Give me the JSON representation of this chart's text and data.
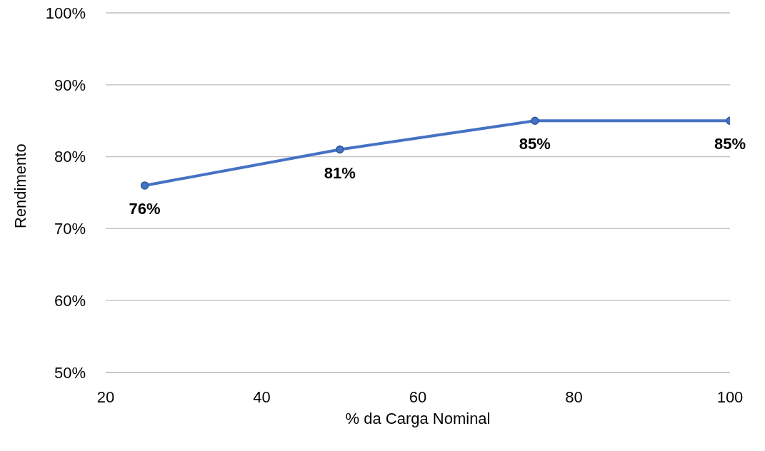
{
  "chart_data": {
    "type": "line",
    "xlabel": "% da Carga Nominal",
    "ylabel": "Rendimento",
    "x": [
      25,
      50,
      75,
      100
    ],
    "series": [
      {
        "color": "#4472c4",
        "values": [
          76,
          81,
          85,
          85
        ],
        "value_labels": [
          "76%",
          "81%",
          "85%",
          "85%"
        ]
      }
    ],
    "xlim": [
      20,
      100
    ],
    "xticks": [
      20,
      40,
      60,
      80,
      100
    ],
    "ylim": [
      50,
      100
    ],
    "yticks": [
      {
        "value": 50,
        "label": "50%"
      },
      {
        "value": 60,
        "label": "60%"
      },
      {
        "value": 70,
        "label": "70%"
      },
      {
        "value": 80,
        "label": "80%"
      },
      {
        "value": 90,
        "label": "90%"
      },
      {
        "value": 100,
        "label": "100%"
      }
    ],
    "grid": "y",
    "marker": "circle",
    "line_style": "solid"
  }
}
